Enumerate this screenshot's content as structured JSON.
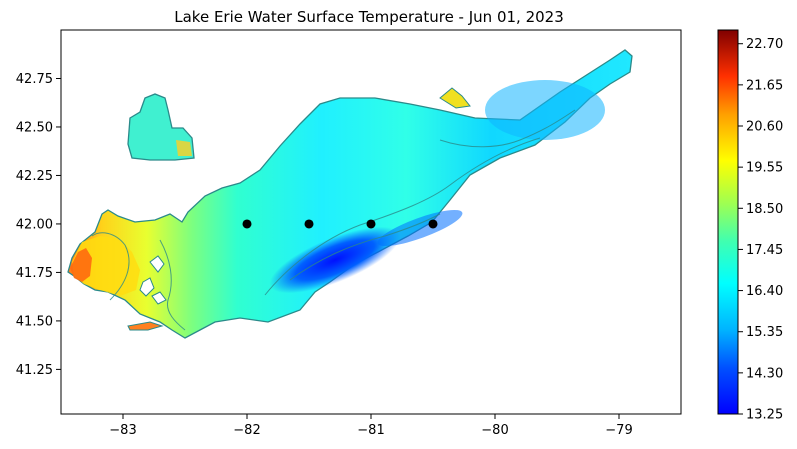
{
  "chart_data": {
    "type": "heatmap",
    "title": "Lake Erie Water Surface Temperature - Jun 01, 2023",
    "xlabel": "",
    "ylabel": "",
    "xlim": [
      -83.5,
      -78.5
    ],
    "ylim": [
      41.02,
      43.0
    ],
    "x_ticks": [
      -83,
      -82,
      -81,
      -80,
      -79
    ],
    "x_tick_labels": [
      "−83",
      "−82",
      "−81",
      "−80",
      "−79"
    ],
    "y_ticks": [
      41.25,
      41.5,
      41.75,
      42.0,
      42.25,
      42.5,
      42.75
    ],
    "y_tick_labels": [
      "41.25",
      "41.50",
      "41.75",
      "42.00",
      "42.25",
      "42.50",
      "42.75"
    ],
    "colorbar": {
      "colormap": "jet",
      "min": 13.25,
      "max": 23.05,
      "ticks": [
        13.25,
        14.3,
        15.35,
        16.4,
        17.45,
        18.5,
        19.55,
        20.6,
        21.65,
        22.7
      ],
      "tick_labels": [
        "13.25",
        "14.30",
        "15.35",
        "16.40",
        "17.45",
        "18.50",
        "19.55",
        "20.60",
        "21.65",
        "22.70"
      ]
    },
    "points": [
      {
        "x": -82.0,
        "y": 42.0
      },
      {
        "x": -81.5,
        "y": 42.0
      },
      {
        "x": -81.0,
        "y": 42.0
      },
      {
        "x": -80.5,
        "y": 42.0
      }
    ],
    "grid": false,
    "legend": "none"
  }
}
